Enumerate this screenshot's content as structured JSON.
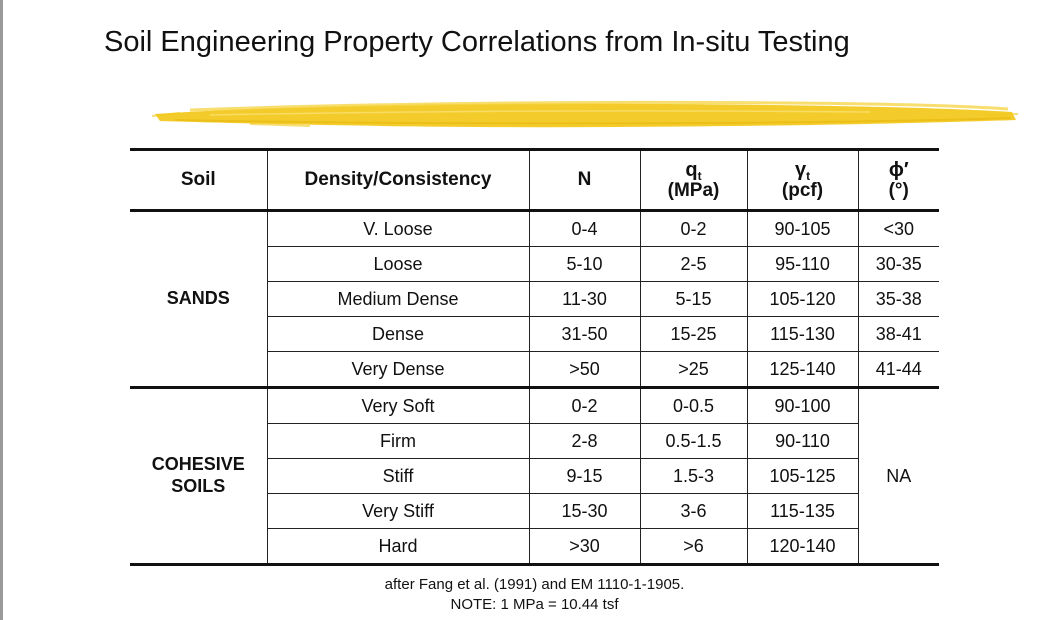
{
  "title": "Soil Engineering Property Correlations from In-situ Testing",
  "colors": {
    "highlight": "#f2c81a",
    "rule": "#111111"
  },
  "header": {
    "soil": "Soil",
    "density": "Density/Consistency",
    "n": "N",
    "qt_symbol": "q",
    "qt_sub": "t",
    "qt_unit": "(MPa)",
    "gamma_symbol": "γ",
    "gamma_sub": "t",
    "gamma_unit": "(pcf)",
    "phi_symbol": "ϕ′",
    "phi_unit": "(°)"
  },
  "groups": {
    "sands": "SANDS",
    "cohesive_line1": "COHESIVE",
    "cohesive_line2": "SOILS",
    "cohesive_phi": "NA"
  },
  "sands_rows": [
    {
      "density": "V. Loose",
      "n": "0-4",
      "qt": "0-2",
      "gamma": "90-105",
      "phi": "<30"
    },
    {
      "density": "Loose",
      "n": "5-10",
      "qt": "2-5",
      "gamma": "95-110",
      "phi": "30-35"
    },
    {
      "density": "Medium Dense",
      "n": "11-30",
      "qt": "5-15",
      "gamma": "105-120",
      "phi": "35-38"
    },
    {
      "density": "Dense",
      "n": "31-50",
      "qt": "15-25",
      "gamma": "115-130",
      "phi": "38-41"
    },
    {
      "density": "Very Dense",
      "n": ">50",
      "qt": ">25",
      "gamma": "125-140",
      "phi": "41-44"
    }
  ],
  "cohesive_rows": [
    {
      "density": "Very Soft",
      "n": "0-2",
      "qt": "0-0.5",
      "gamma": "90-100"
    },
    {
      "density": "Firm",
      "n": "2-8",
      "qt": "0.5-1.5",
      "gamma": "90-110"
    },
    {
      "density": "Stiff",
      "n": "9-15",
      "qt": "1.5-3",
      "gamma": "105-125"
    },
    {
      "density": "Very Stiff",
      "n": "15-30",
      "qt": "3-6",
      "gamma": "115-135"
    },
    {
      "density": "Hard",
      "n": ">30",
      "qt": ">6",
      "gamma": "120-140"
    }
  ],
  "footnote": {
    "source": "after Fang et al. (1991) and EM 1110-1-1905.",
    "note": "NOTE: 1 MPa = 10.44 tsf"
  }
}
